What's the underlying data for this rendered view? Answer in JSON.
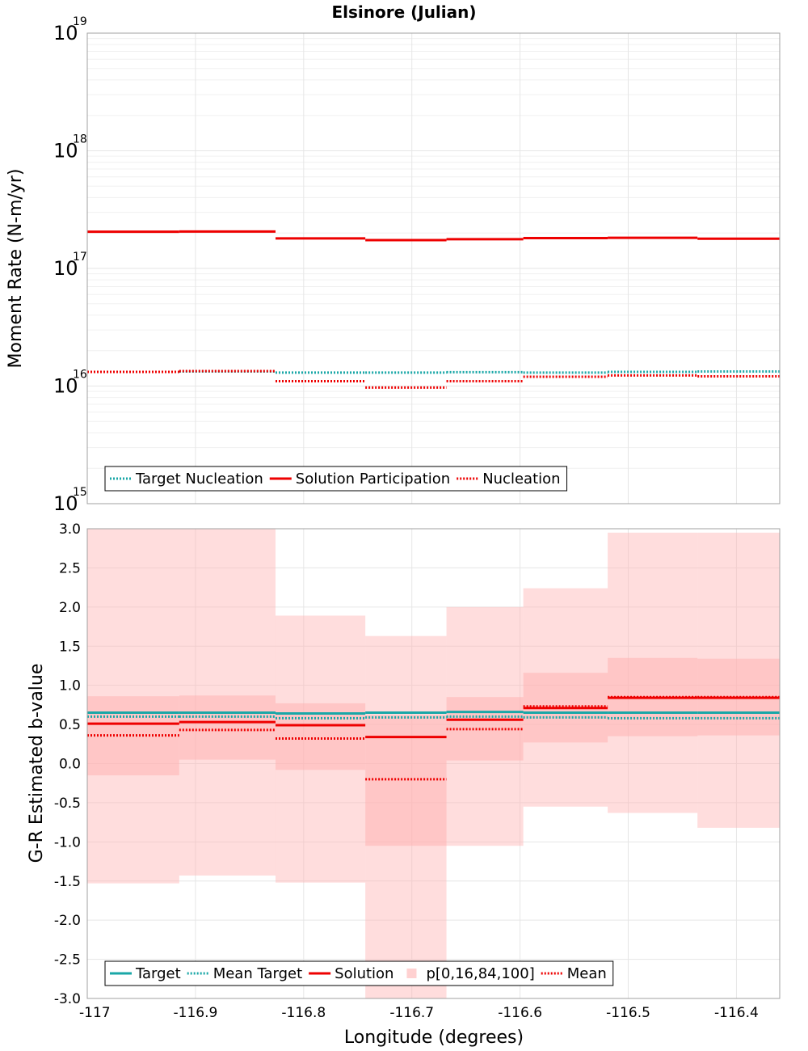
{
  "title": "Elsinore (Julian)",
  "chart_data": [
    {
      "type": "line",
      "ylabel": "Moment Rate (N-m/yr)",
      "yscale": "log",
      "ylim": [
        1000000000000000.0,
        1e+19
      ],
      "y_ticks": [
        {
          "base": "10",
          "exp": "15",
          "value": 1000000000000000.0
        },
        {
          "base": "10",
          "exp": "16",
          "value": 1e+16
        },
        {
          "base": "10",
          "exp": "17",
          "value": 1e+17
        },
        {
          "base": "10",
          "exp": "18",
          "value": 1e+18
        },
        {
          "base": "10",
          "exp": "19",
          "value": 1e+19
        }
      ],
      "xlim": [
        -117.0,
        -116.36
      ],
      "bins": [
        [
          -117.0,
          -116.915
        ],
        [
          -116.915,
          -116.826
        ],
        [
          -116.826,
          -116.743
        ],
        [
          -116.743,
          -116.668
        ],
        [
          -116.668,
          -116.597
        ],
        [
          -116.597,
          -116.519
        ],
        [
          -116.519,
          -116.436
        ],
        [
          -116.436,
          -116.36
        ]
      ],
      "grid": true,
      "legend_position": "bottom-left",
      "legend": [
        "Target Nucleation",
        "Solution Participation",
        "Nucleation"
      ],
      "series": [
        {
          "name": "Target Nucleation",
          "color": "#1aa7a7",
          "style": "dotted",
          "values": [
            1.32e+16,
            1.33e+16,
            1.3e+16,
            1.3e+16,
            1.31e+16,
            1.3e+16,
            1.32e+16,
            1.33e+16
          ]
        },
        {
          "name": "Solution Participation",
          "color": "#ee0000",
          "style": "solid",
          "values": [
            2.05e+17,
            2.06e+17,
            1.8e+17,
            1.74e+17,
            1.77e+17,
            1.81e+17,
            1.82e+17,
            1.79e+17
          ]
        },
        {
          "name": "Nucleation",
          "color": "#ee0000",
          "style": "dotted",
          "values": [
            1.32e+16,
            1.34e+16,
            1.1e+16,
            9700000000000000.0,
            1.1e+16,
            1.2e+16,
            1.23e+16,
            1.21e+16
          ]
        }
      ]
    },
    {
      "type": "line",
      "ylabel": "G-R Estimated b-value",
      "xlabel": "Longitude (degrees)",
      "ylim": [
        -3.0,
        3.0
      ],
      "y_ticks": [
        "3.0",
        "2.5",
        "2.0",
        "1.5",
        "1.0",
        "0.5",
        "0.0",
        "-0.5",
        "-1.0",
        "-1.5",
        "-2.0",
        "-2.5",
        "-3.0"
      ],
      "xlim": [
        -117.0,
        -116.36
      ],
      "x_ticks": [
        "-117",
        "-116.9",
        "-116.8",
        "-116.7",
        "-116.6",
        "-116.5",
        "-116.4"
      ],
      "bins": [
        [
          -117.0,
          -116.915
        ],
        [
          -116.915,
          -116.826
        ],
        [
          -116.826,
          -116.743
        ],
        [
          -116.743,
          -116.668
        ],
        [
          -116.668,
          -116.597
        ],
        [
          -116.597,
          -116.519
        ],
        [
          -116.519,
          -116.436
        ],
        [
          -116.436,
          -116.36
        ]
      ],
      "grid": true,
      "legend_position": "bottom-left",
      "legend": [
        "Target",
        "Mean Target",
        "Solution",
        "p[0,16,84,100]",
        "Mean"
      ],
      "bands": {
        "name": "p[0,16,84,100]",
        "color": "#ffb3b3",
        "p0": [
          -1.53,
          -1.43,
          -1.52,
          -3.0,
          -1.05,
          -0.55,
          -0.63,
          -0.82
        ],
        "p16": [
          -0.15,
          0.05,
          -0.08,
          -1.05,
          0.04,
          0.27,
          0.35,
          0.36
        ],
        "p84": [
          0.86,
          0.87,
          0.77,
          0.62,
          0.85,
          1.16,
          1.35,
          1.34
        ],
        "p100": [
          3.0,
          3.0,
          1.89,
          1.63,
          2.0,
          2.24,
          2.95,
          2.95
        ]
      },
      "series": [
        {
          "name": "Target",
          "color": "#1aa7a7",
          "style": "solid",
          "values": [
            0.65,
            0.65,
            0.64,
            0.65,
            0.66,
            0.65,
            0.65,
            0.65
          ]
        },
        {
          "name": "Mean Target",
          "color": "#1aa7a7",
          "style": "dotted",
          "values": [
            0.6,
            0.6,
            0.58,
            0.59,
            0.6,
            0.59,
            0.58,
            0.58
          ]
        },
        {
          "name": "Solution",
          "color": "#ee0000",
          "style": "solid",
          "values": [
            0.51,
            0.53,
            0.49,
            0.34,
            0.56,
            0.71,
            0.84,
            0.84
          ]
        },
        {
          "name": "Mean",
          "color": "#ee0000",
          "style": "dotted",
          "values": [
            0.36,
            0.43,
            0.32,
            -0.2,
            0.44,
            0.73,
            0.85,
            0.85
          ]
        }
      ]
    }
  ]
}
